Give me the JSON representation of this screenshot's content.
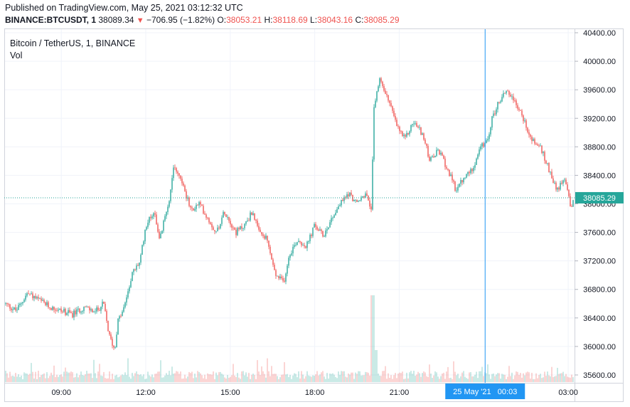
{
  "header": {
    "published": "Published on TradingView.com, May 25, 2021 03:12:32 UTC",
    "symbol": "BINANCE:BTCUSDT, 1",
    "last": "38089.34",
    "arrow": "▼",
    "change": "−706.95 (−1.82%)",
    "o_label": "O:",
    "o_value": "38053.21",
    "h_label": "H:",
    "h_value": "38118.69",
    "l_label": "L:",
    "l_value": "38043.16",
    "c_label": "C:",
    "c_value": "38085.29"
  },
  "legend": {
    "title": "Bitcoin / TetherUS, 1, BINANCE",
    "volume": "Vol"
  },
  "crosshair_label": "25 May '21   00:03",
  "last_price_label": "38085.29",
  "colors": {
    "up": "#26a69a",
    "down": "#ef5350",
    "crosshair": "#2196f3",
    "axis_text": "#131722"
  },
  "chart_data": {
    "type": "candlestick",
    "title": "Bitcoin / TetherUS, 1, BINANCE",
    "ylim": [
      35500,
      40450
    ],
    "y_ticks": [
      "35600.00",
      "36000.00",
      "36400.00",
      "36800.00",
      "37200.00",
      "37600.00",
      "38000.00",
      "38400.00",
      "38800.00",
      "39200.00",
      "39600.00",
      "40000.00",
      "40400.00"
    ],
    "y_tick_values": [
      35600,
      36000,
      36400,
      36800,
      37200,
      37600,
      38000,
      38400,
      38800,
      39200,
      39600,
      40000,
      40400
    ],
    "x_ticks": [
      "09:00",
      "12:00",
      "15:00",
      "18:00",
      "21:00",
      "03:00"
    ],
    "x_tick_hours": [
      9,
      12,
      15,
      18,
      21,
      27
    ],
    "x_range_hours": [
      7.0,
      27.2
    ],
    "crosshair_hour": 24.05,
    "last_price": 38085.29,
    "price_path": [
      [
        7.0,
        36600
      ],
      [
        7.4,
        36500
      ],
      [
        7.8,
        36750
      ],
      [
        8.2,
        36650
      ],
      [
        8.6,
        36550
      ],
      [
        9.0,
        36500
      ],
      [
        9.4,
        36450
      ],
      [
        9.8,
        36550
      ],
      [
        10.2,
        36480
      ],
      [
        10.5,
        36600
      ],
      [
        10.7,
        36150
      ],
      [
        10.9,
        35950
      ],
      [
        11.0,
        36350
      ],
      [
        11.2,
        36500
      ],
      [
        11.5,
        37000
      ],
      [
        11.8,
        37200
      ],
      [
        12.0,
        37700
      ],
      [
        12.3,
        37900
      ],
      [
        12.5,
        37500
      ],
      [
        12.9,
        38200
      ],
      [
        13.0,
        38550
      ],
      [
        13.3,
        38300
      ],
      [
        13.6,
        37900
      ],
      [
        13.9,
        38000
      ],
      [
        14.2,
        37800
      ],
      [
        14.5,
        37600
      ],
      [
        14.8,
        37900
      ],
      [
        15.2,
        37600
      ],
      [
        15.5,
        37700
      ],
      [
        15.8,
        37900
      ],
      [
        16.0,
        37600
      ],
      [
        16.3,
        37500
      ],
      [
        16.6,
        37000
      ],
      [
        16.9,
        36900
      ],
      [
        17.1,
        37300
      ],
      [
        17.4,
        37500
      ],
      [
        17.7,
        37400
      ],
      [
        18.0,
        37700
      ],
      [
        18.3,
        37550
      ],
      [
        18.6,
        37800
      ],
      [
        18.9,
        38000
      ],
      [
        19.2,
        38150
      ],
      [
        19.5,
        38000
      ],
      [
        19.8,
        38150
      ],
      [
        20.0,
        37900
      ],
      [
        20.1,
        39300
      ],
      [
        20.3,
        39750
      ],
      [
        20.6,
        39500
      ],
      [
        20.9,
        39100
      ],
      [
        21.2,
        38900
      ],
      [
        21.5,
        39150
      ],
      [
        21.8,
        39000
      ],
      [
        22.1,
        38600
      ],
      [
        22.4,
        38750
      ],
      [
        22.7,
        38500
      ],
      [
        23.0,
        38200
      ],
      [
        23.3,
        38350
      ],
      [
        23.6,
        38500
      ],
      [
        23.9,
        38800
      ],
      [
        24.1,
        38850
      ],
      [
        24.3,
        39200
      ],
      [
        24.5,
        39400
      ],
      [
        24.8,
        39600
      ],
      [
        25.1,
        39450
      ],
      [
        25.4,
        39200
      ],
      [
        25.7,
        38900
      ],
      [
        26.0,
        38800
      ],
      [
        26.3,
        38500
      ],
      [
        26.6,
        38200
      ],
      [
        26.9,
        38350
      ],
      [
        27.1,
        37950
      ],
      [
        27.2,
        38085
      ]
    ]
  }
}
